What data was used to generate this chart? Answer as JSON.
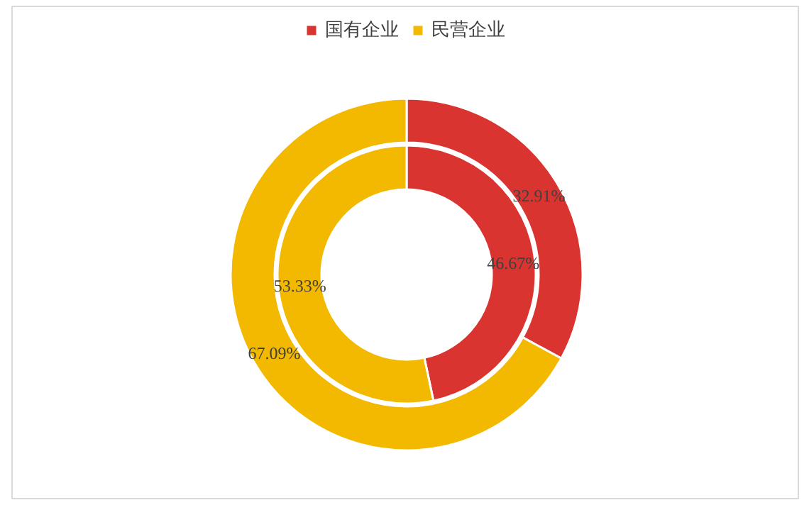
{
  "chart_data": {
    "type": "donut",
    "categories": [
      "国有企业",
      "民营企业"
    ],
    "colors": [
      "#d93430",
      "#f2b900"
    ],
    "series": [
      {
        "values": [
          32.91,
          67.09
        ],
        "value_labels": [
          "32.91%",
          "67.09%"
        ]
      },
      {
        "values": [
          46.67,
          53.33
        ],
        "value_labels": [
          "46.67%",
          "53.33%"
        ]
      }
    ],
    "legend": "top"
  }
}
